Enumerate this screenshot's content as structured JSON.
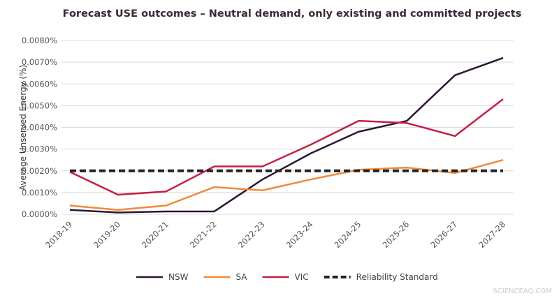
{
  "chart_data": {
    "type": "line",
    "title": "Forecast USE outcomes – Neutral demand, only existing and committed projects",
    "xlabel": "",
    "ylabel": "Average Unserved Energy (%)",
    "ylim": [
      0,
      0.008
    ],
    "yticks": [
      "0.0000%",
      "0.0010%",
      "0.0020%",
      "0.0030%",
      "0.0040%",
      "0.0050%",
      "0.0060%",
      "0.0070%",
      "0.0080%"
    ],
    "grid": true,
    "legend_position": "bottom",
    "categories": [
      "2018-19",
      "2019-20",
      "2020-21",
      "2021-22",
      "2022-23",
      "2023-24",
      "2024-25",
      "2025-26",
      "2026-27",
      "2027-28"
    ],
    "series": [
      {
        "name": "NSW",
        "color": "#2d1633",
        "dashed": false,
        "values": [
          0.0002,
          8e-05,
          0.00013,
          0.00013,
          0.0016,
          0.0028,
          0.0038,
          0.0043,
          0.0064,
          0.0072
        ]
      },
      {
        "name": "SA",
        "color": "#f08a3c",
        "dashed": false,
        "values": [
          0.0004,
          0.0002,
          0.0004,
          0.00125,
          0.0011,
          0.0016,
          0.00205,
          0.00215,
          0.0019,
          0.0025
        ]
      },
      {
        "name": "VIC",
        "color": "#c41e45",
        "dashed": false,
        "values": [
          0.00195,
          0.0009,
          0.00105,
          0.0022,
          0.0022,
          0.0032,
          0.0043,
          0.0042,
          0.0036,
          0.0053
        ]
      },
      {
        "name": "Reliability Standard",
        "color": "#222222",
        "dashed": true,
        "values": [
          0.002,
          0.002,
          0.002,
          0.002,
          0.002,
          0.002,
          0.002,
          0.002,
          0.002,
          0.002
        ]
      }
    ]
  },
  "watermark": "SCIENCEAQ.COM"
}
